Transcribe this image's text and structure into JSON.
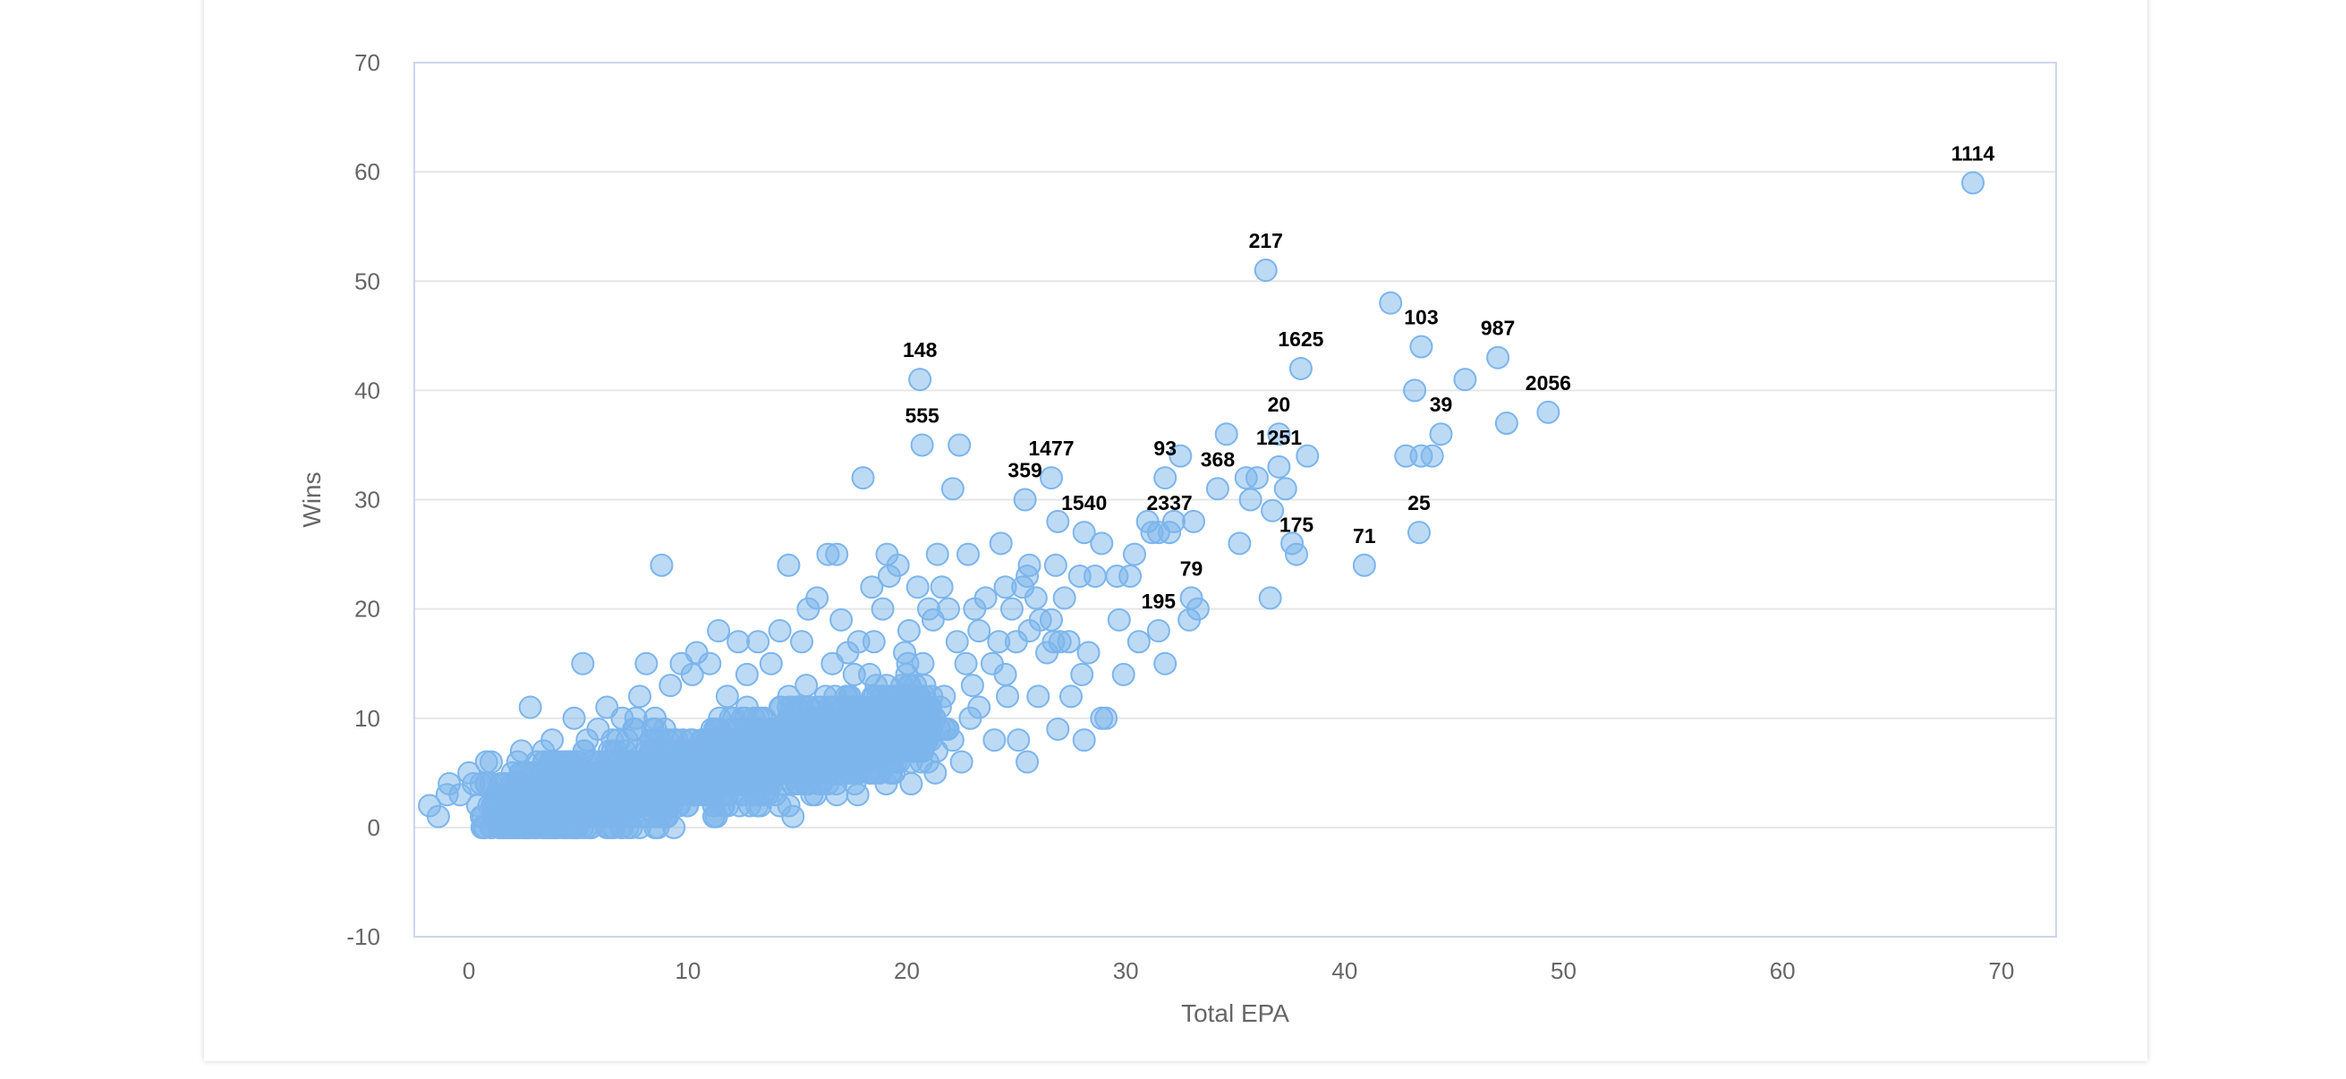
{
  "page": {
    "filters": [
      "",
      "",
      ""
    ]
  },
  "chart_data": {
    "type": "scatter",
    "title": "",
    "xlabel": "Total EPA",
    "ylabel": "Wins",
    "xlim": [
      -2.5,
      72.5
    ],
    "ylim": [
      -10,
      70
    ],
    "xticks": [
      "0",
      "10",
      "20",
      "30",
      "40",
      "50",
      "60",
      "70"
    ],
    "yticks": [
      "70",
      "60",
      "50",
      "40",
      "30",
      "20",
      "10",
      "0",
      "-10"
    ],
    "grid": true,
    "colors": {
      "point_fill": "#7cb5ec",
      "point_stroke": "#7cb5ec",
      "grid": "#e6e6e6",
      "frame": "#ccd6eb"
    },
    "labeled_points": [
      {
        "label": "1114",
        "x": 68.7,
        "y": 59
      },
      {
        "label": "217",
        "x": 36.4,
        "y": 51
      },
      {
        "label": "103",
        "x": 43.5,
        "y": 44
      },
      {
        "label": "987",
        "x": 47.0,
        "y": 43
      },
      {
        "label": "1625",
        "x": 38.0,
        "y": 42
      },
      {
        "label": "2056",
        "x": 49.3,
        "y": 38
      },
      {
        "label": "148",
        "x": 20.6,
        "y": 41
      },
      {
        "label": "555",
        "x": 20.7,
        "y": 35
      },
      {
        "label": "20",
        "x": 37.0,
        "y": 36
      },
      {
        "label": "39",
        "x": 44.4,
        "y": 36
      },
      {
        "label": "1477",
        "x": 26.6,
        "y": 32
      },
      {
        "label": "93",
        "x": 31.8,
        "y": 32
      },
      {
        "label": "368",
        "x": 34.2,
        "y": 31
      },
      {
        "label": "1251",
        "x": 37.0,
        "y": 33
      },
      {
        "label": "359",
        "x": 25.4,
        "y": 30
      },
      {
        "label": "1540",
        "x": 28.1,
        "y": 27
      },
      {
        "label": "25",
        "x": 43.4,
        "y": 27
      },
      {
        "label": "175",
        "x": 37.8,
        "y": 25
      },
      {
        "label": "2337",
        "x": 32.0,
        "y": 27
      },
      {
        "label": "71",
        "x": 40.9,
        "y": 24
      },
      {
        "label": "79",
        "x": 33.0,
        "y": 21
      },
      {
        "label": "195",
        "x": 31.5,
        "y": 18
      }
    ],
    "other_points": [
      [
        -1.8,
        2
      ],
      [
        -1.4,
        1
      ],
      [
        -1.0,
        3
      ],
      [
        -0.9,
        4
      ],
      [
        -0.4,
        3
      ],
      [
        0.0,
        5
      ],
      [
        0.2,
        4
      ],
      [
        0.4,
        2
      ],
      [
        0.6,
        0
      ],
      [
        0.8,
        6
      ],
      [
        1.0,
        0
      ],
      [
        1.2,
        1
      ],
      [
        2.2,
        4
      ],
      [
        2.4,
        7
      ],
      [
        2.8,
        11
      ],
      [
        3.1,
        6
      ],
      [
        3.4,
        7
      ],
      [
        3.8,
        8
      ],
      [
        4.4,
        5
      ],
      [
        4.8,
        10
      ],
      [
        5.2,
        15
      ],
      [
        5.4,
        8
      ],
      [
        5.9,
        9
      ],
      [
        6.3,
        11
      ],
      [
        7.0,
        10
      ],
      [
        7.8,
        12
      ],
      [
        8.1,
        15
      ],
      [
        8.5,
        10
      ],
      [
        8.8,
        24
      ],
      [
        9.2,
        13
      ],
      [
        9.7,
        15
      ],
      [
        10.2,
        14
      ],
      [
        10.4,
        16
      ],
      [
        11.0,
        15
      ],
      [
        11.4,
        18
      ],
      [
        11.8,
        12
      ],
      [
        12.3,
        17
      ],
      [
        12.7,
        14
      ],
      [
        13.2,
        17
      ],
      [
        13.8,
        15
      ],
      [
        14.2,
        18
      ],
      [
        14.6,
        24
      ],
      [
        15.2,
        17
      ],
      [
        15.5,
        20
      ],
      [
        15.9,
        21
      ],
      [
        16.4,
        25
      ],
      [
        16.6,
        15
      ],
      [
        16.8,
        25
      ],
      [
        17.0,
        19
      ],
      [
        17.3,
        16
      ],
      [
        17.6,
        14
      ],
      [
        18.0,
        32
      ],
      [
        18.4,
        22
      ],
      [
        18.5,
        17
      ],
      [
        18.9,
        20
      ],
      [
        19.1,
        25
      ],
      [
        19.2,
        23
      ],
      [
        19.6,
        24
      ],
      [
        19.9,
        16
      ],
      [
        20.1,
        18
      ],
      [
        20.5,
        22
      ],
      [
        21.0,
        20
      ],
      [
        21.2,
        19
      ],
      [
        21.4,
        25
      ],
      [
        21.6,
        22
      ],
      [
        21.9,
        20
      ],
      [
        22.1,
        31
      ],
      [
        22.4,
        35
      ],
      [
        22.3,
        17
      ],
      [
        22.7,
        15
      ],
      [
        22.8,
        25
      ],
      [
        23.1,
        20
      ],
      [
        23.3,
        18
      ],
      [
        23.6,
        21
      ],
      [
        23.9,
        15
      ],
      [
        24.2,
        17
      ],
      [
        24.3,
        26
      ],
      [
        24.5,
        22
      ],
      [
        24.8,
        20
      ],
      [
        25.0,
        17
      ],
      [
        25.3,
        22
      ],
      [
        25.5,
        23
      ],
      [
        25.6,
        24
      ],
      [
        25.9,
        21
      ],
      [
        26.1,
        19
      ],
      [
        26.4,
        16
      ],
      [
        26.6,
        19
      ],
      [
        26.8,
        24
      ],
      [
        26.9,
        28
      ],
      [
        27.2,
        21
      ],
      [
        27.4,
        17
      ],
      [
        27.9,
        23
      ],
      [
        28.0,
        14
      ],
      [
        28.3,
        16
      ],
      [
        28.6,
        23
      ],
      [
        28.9,
        26
      ],
      [
        29.1,
        10
      ],
      [
        29.6,
        23
      ],
      [
        29.7,
        19
      ],
      [
        29.9,
        14
      ],
      [
        30.2,
        23
      ],
      [
        30.4,
        25
      ],
      [
        30.6,
        17
      ],
      [
        31.0,
        28
      ],
      [
        31.2,
        27
      ],
      [
        31.5,
        27
      ],
      [
        31.8,
        15
      ],
      [
        32.2,
        28
      ],
      [
        32.5,
        34
      ],
      [
        32.9,
        19
      ],
      [
        33.1,
        28
      ],
      [
        33.3,
        20
      ],
      [
        34.6,
        36
      ],
      [
        35.2,
        26
      ],
      [
        35.5,
        32
      ],
      [
        35.7,
        30
      ],
      [
        36.0,
        32
      ],
      [
        36.6,
        21
      ],
      [
        36.7,
        29
      ],
      [
        37.3,
        31
      ],
      [
        37.6,
        26
      ],
      [
        38.3,
        34
      ],
      [
        42.1,
        48
      ],
      [
        42.8,
        34
      ],
      [
        43.2,
        40
      ],
      [
        43.5,
        34
      ],
      [
        44.0,
        34
      ],
      [
        45.5,
        41
      ],
      [
        47.4,
        37
      ],
      [
        17.8,
        17
      ],
      [
        18.6,
        13
      ],
      [
        19.4,
        12
      ],
      [
        19.8,
        9
      ],
      [
        20.4,
        11
      ],
      [
        21.7,
        9
      ],
      [
        22.1,
        8
      ],
      [
        22.5,
        6
      ],
      [
        23.3,
        11
      ],
      [
        24.0,
        8
      ],
      [
        25.1,
        8
      ],
      [
        25.5,
        6
      ],
      [
        26.9,
        9
      ],
      [
        27.5,
        12
      ],
      [
        28.1,
        8
      ],
      [
        28.9,
        10
      ],
      [
        20.2,
        4
      ],
      [
        21.3,
        5
      ],
      [
        19.3,
        5
      ],
      [
        16.8,
        3
      ],
      [
        14.8,
        1
      ],
      [
        11.3,
        1
      ],
      [
        7.8,
        0
      ],
      [
        3.9,
        0
      ],
      [
        1.8,
        0
      ],
      [
        8.5,
        0
      ],
      [
        14.2,
        2
      ],
      [
        23.0,
        13
      ],
      [
        24.6,
        12
      ],
      [
        26.0,
        12
      ],
      [
        22.9,
        10
      ],
      [
        24.5,
        14
      ],
      [
        25.6,
        18
      ],
      [
        26.7,
        17
      ],
      [
        27.0,
        17
      ]
    ],
    "cloud_count": 2000
  }
}
